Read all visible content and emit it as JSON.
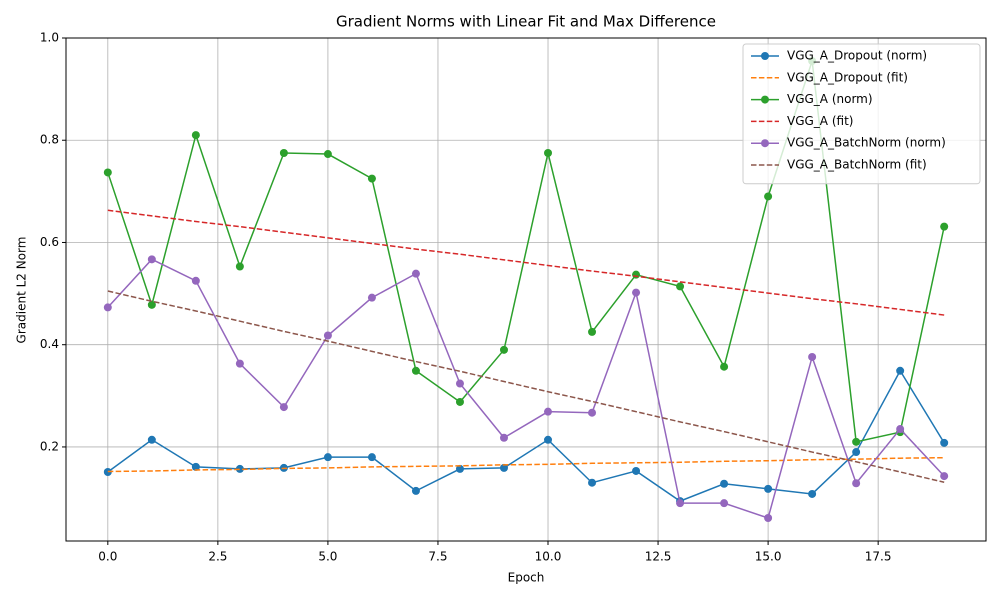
{
  "chart_data": {
    "type": "line",
    "title": "Gradient Norms with Linear Fit and Max Difference",
    "x_label": "Epoch",
    "y_label": "Gradient L2 Norm",
    "x": [
      0,
      1,
      2,
      3,
      4,
      5,
      6,
      7,
      8,
      9,
      10,
      11,
      12,
      13,
      14,
      15,
      16,
      17,
      18,
      19
    ],
    "xlim": [
      -0.95,
      19.95
    ],
    "xticks": [
      {
        "value": 0,
        "label": "0.0"
      },
      2.5,
      {
        "value": 5,
        "label": "5.0"
      },
      7.5,
      {
        "value": 10,
        "label": "10.0"
      },
      12.5,
      {
        "value": 15,
        "label": "15.0"
      },
      17.5
    ],
    "ylim": [
      0.016,
      1.0
    ],
    "yticks": [
      0.2,
      0.4,
      0.6,
      0.8,
      {
        "value": 1,
        "label": "1.0"
      }
    ],
    "grid": true,
    "legend": "upper right",
    "series": [
      {
        "name": "VGG_A_Dropout (norm)",
        "color": "#1f77b4",
        "dashed": false,
        "marker": true,
        "values": [
          0.151,
          0.214,
          0.161,
          0.157,
          0.159,
          0.18,
          0.18,
          0.114,
          0.157,
          0.159,
          0.214,
          0.13,
          0.153,
          0.094,
          0.128,
          0.118,
          0.108,
          0.19,
          0.349,
          0.208
        ]
      },
      {
        "name": "VGG_A_Dropout (fit)",
        "color": "#ff7f0e",
        "dashed": true,
        "marker": false,
        "values": [
          0.152,
          0.153,
          0.155,
          0.156,
          0.158,
          0.159,
          0.161,
          0.162,
          0.163,
          0.165,
          0.166,
          0.168,
          0.169,
          0.17,
          0.172,
          0.173,
          0.175,
          0.176,
          0.178,
          0.179
        ]
      },
      {
        "name": "VGG_A (norm)",
        "color": "#2ca02c",
        "dashed": false,
        "marker": true,
        "values": [
          0.737,
          0.478,
          0.81,
          0.553,
          0.775,
          0.773,
          0.725,
          0.349,
          0.288,
          0.39,
          0.775,
          0.425,
          0.537,
          0.514,
          0.357,
          0.69,
          0.955,
          0.21,
          0.229,
          0.631
        ]
      },
      {
        "name": "VGG_A (fit)",
        "color": "#d62728",
        "dashed": true,
        "marker": false,
        "values": [
          0.663,
          0.652,
          0.641,
          0.631,
          0.62,
          0.609,
          0.598,
          0.587,
          0.577,
          0.566,
          0.555,
          0.544,
          0.534,
          0.523,
          0.512,
          0.501,
          0.49,
          0.48,
          0.469,
          0.458
        ]
      },
      {
        "name": "VGG_A_BatchNorm (norm)",
        "color": "#9467bd",
        "dashed": false,
        "marker": true,
        "values": [
          0.473,
          0.567,
          0.525,
          0.363,
          0.278,
          0.418,
          0.492,
          0.539,
          0.324,
          0.218,
          0.269,
          0.267,
          0.502,
          0.09,
          0.09,
          0.061,
          0.376,
          0.129,
          0.235,
          0.143
        ]
      },
      {
        "name": "VGG_A_BatchNorm (fit)",
        "color": "#8c564b",
        "dashed": true,
        "marker": false,
        "values": [
          0.505,
          0.485,
          0.466,
          0.446,
          0.426,
          0.407,
          0.387,
          0.367,
          0.348,
          0.328,
          0.308,
          0.289,
          0.269,
          0.249,
          0.23,
          0.21,
          0.19,
          0.171,
          0.151,
          0.131
        ]
      }
    ]
  }
}
